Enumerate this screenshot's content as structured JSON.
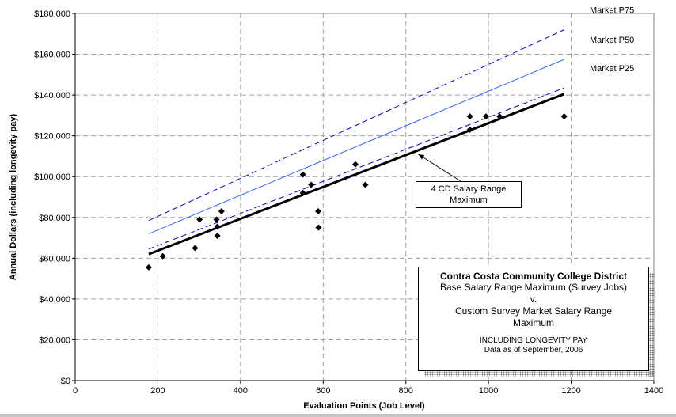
{
  "chart_data": {
    "type": "scatter",
    "xlabel": "Evaluation Points (Job Level)",
    "ylabel": "Annual Dollars (including longevity pay)",
    "xlim": [
      0,
      1400
    ],
    "ylim": [
      0,
      180000
    ],
    "x_ticks": [
      "0",
      "200",
      "400",
      "600",
      "800",
      "1000",
      "1200",
      "1400"
    ],
    "y_ticks": [
      "$0",
      "$20,000",
      "$40,000",
      "$60,000",
      "$80,000",
      "$100,000",
      "$120,000",
      "$140,000",
      "$160,000",
      "$180,000"
    ],
    "grid": true,
    "points": [
      {
        "x": 178,
        "y": 55500
      },
      {
        "x": 212,
        "y": 61000
      },
      {
        "x": 290,
        "y": 65000
      },
      {
        "x": 301,
        "y": 79000
      },
      {
        "x": 342,
        "y": 79000
      },
      {
        "x": 344,
        "y": 75500
      },
      {
        "x": 344,
        "y": 71000
      },
      {
        "x": 354,
        "y": 83000
      },
      {
        "x": 551,
        "y": 101000
      },
      {
        "x": 551,
        "y": 92000
      },
      {
        "x": 571,
        "y": 96000
      },
      {
        "x": 588,
        "y": 83000
      },
      {
        "x": 589,
        "y": 75000
      },
      {
        "x": 678,
        "y": 106000
      },
      {
        "x": 702,
        "y": 96000
      },
      {
        "x": 955,
        "y": 129500
      },
      {
        "x": 955,
        "y": 123000
      },
      {
        "x": 994,
        "y": 129500
      },
      {
        "x": 1027,
        "y": 129500
      },
      {
        "x": 1183,
        "y": 129500
      }
    ],
    "lines": [
      {
        "name": "Market P75",
        "style": "dashed",
        "color": "#0000cc",
        "x": [
          178,
          1183
        ],
        "y": [
          78500,
          172000
        ]
      },
      {
        "name": "Market P50",
        "style": "solid",
        "color": "#3366ff",
        "x": [
          178,
          1183
        ],
        "y": [
          72000,
          157500
        ]
      },
      {
        "name": "Market P25",
        "style": "dashed",
        "color": "#0000cc",
        "x": [
          178,
          1183
        ],
        "y": [
          64500,
          143500
        ]
      },
      {
        "name": "4 CD Salary Range Maximum",
        "style": "solid-bold",
        "color": "#000000",
        "x": [
          178,
          1183
        ],
        "y": [
          62000,
          140500
        ]
      }
    ],
    "callout": {
      "text_line1": "4 CD Salary Range",
      "text_line2": "Maximum",
      "arrow_to": {
        "x": 830,
        "y": 111000
      }
    },
    "info_box": {
      "title": "Contra Costa Community College District",
      "line1": "Base Salary Range Maximum (Survey Jobs)",
      "line2": "v.",
      "line3": "Custom Survey Market Salary Range",
      "line4": "Maximum",
      "line5": "INCLUDING LONGEVITY PAY",
      "line6": "Data as of September, 2006"
    }
  }
}
